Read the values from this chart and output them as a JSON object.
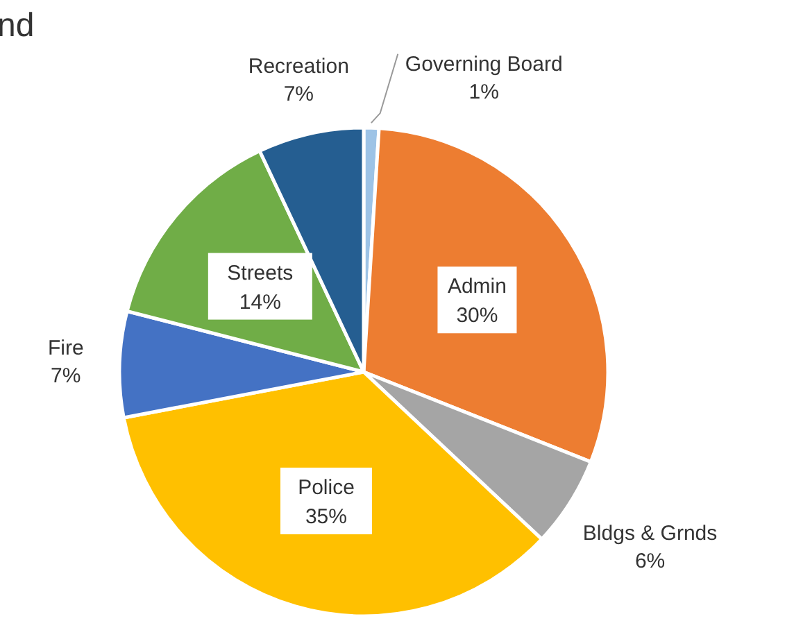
{
  "chart_data": {
    "type": "pie",
    "title": "nd",
    "categories": [
      "Governing Board",
      "Admin",
      "Bldgs & Grnds",
      "Police",
      "Fire",
      "Streets",
      "Recreation"
    ],
    "values": [
      1,
      30,
      6,
      35,
      7,
      14,
      7
    ],
    "value_labels": [
      "1%",
      "30%",
      "6%",
      "35%",
      "7%",
      "14%",
      "7%"
    ],
    "colors": [
      "#9dc3e6",
      "#ed7d31",
      "#a5a5a5",
      "#ffc000",
      "#4472c4",
      "#70ad47",
      "#255e91"
    ]
  }
}
